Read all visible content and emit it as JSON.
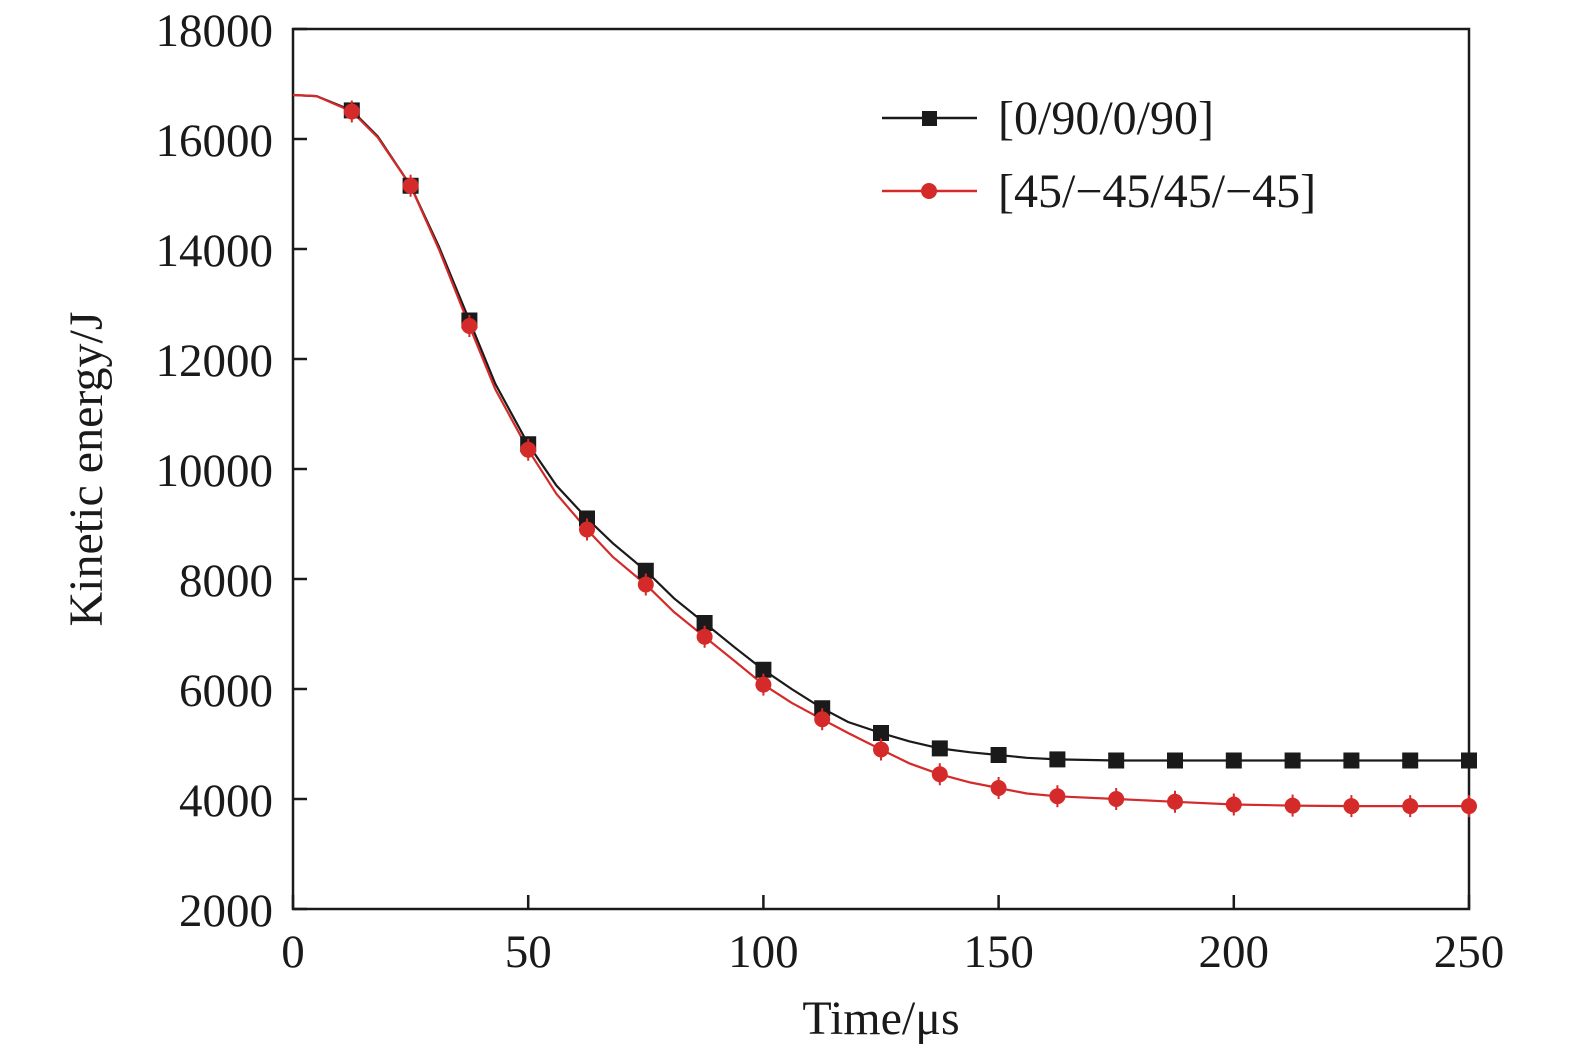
{
  "chart_data": {
    "type": "line",
    "title": "",
    "xlabel": "Time/μs",
    "ylabel": "Kinetic energy/J",
    "xlim": [
      0,
      250
    ],
    "ylim": [
      2000,
      18000
    ],
    "xticks": [
      0,
      50,
      100,
      150,
      200,
      250
    ],
    "yticks": [
      2000,
      4000,
      6000,
      8000,
      10000,
      12000,
      14000,
      16000,
      18000
    ],
    "grid": false,
    "legend_position": "top-right",
    "series": [
      {
        "name": "[0/90/0/90]",
        "color": "#1a1a1a",
        "marker": "square",
        "points": [
          [
            0,
            16800
          ],
          [
            5,
            16780
          ],
          [
            12.5,
            16520
          ],
          [
            18,
            16050
          ],
          [
            25,
            15150
          ],
          [
            31,
            14050
          ],
          [
            37.5,
            12700
          ],
          [
            43,
            11550
          ],
          [
            50,
            10450
          ],
          [
            56,
            9700
          ],
          [
            62.5,
            9100
          ],
          [
            68,
            8650
          ],
          [
            75,
            8150
          ],
          [
            81,
            7650
          ],
          [
            87.5,
            7200
          ],
          [
            94,
            6750
          ],
          [
            100,
            6350
          ],
          [
            106,
            6000
          ],
          [
            112.5,
            5650
          ],
          [
            118,
            5400
          ],
          [
            125,
            5200
          ],
          [
            131,
            5050
          ],
          [
            137.5,
            4920
          ],
          [
            144,
            4850
          ],
          [
            150,
            4800
          ],
          [
            156,
            4750
          ],
          [
            162.5,
            4720
          ],
          [
            175,
            4700
          ],
          [
            187.5,
            4700
          ],
          [
            200,
            4700
          ],
          [
            212.5,
            4700
          ],
          [
            225,
            4700
          ],
          [
            237.5,
            4700
          ],
          [
            250,
            4700
          ]
        ]
      },
      {
        "name": "[45/−45/45/−45]",
        "color": "#d42a2a",
        "marker": "circle",
        "points": [
          [
            0,
            16800
          ],
          [
            5,
            16780
          ],
          [
            12.5,
            16500
          ],
          [
            18,
            16030
          ],
          [
            25,
            15150
          ],
          [
            31,
            14000
          ],
          [
            37.5,
            12600
          ],
          [
            43,
            11450
          ],
          [
            50,
            10350
          ],
          [
            56,
            9550
          ],
          [
            62.5,
            8900
          ],
          [
            68,
            8400
          ],
          [
            75,
            7900
          ],
          [
            81,
            7400
          ],
          [
            87.5,
            6950
          ],
          [
            94,
            6500
          ],
          [
            100,
            6080
          ],
          [
            106,
            5750
          ],
          [
            112.5,
            5450
          ],
          [
            118,
            5200
          ],
          [
            125,
            4900
          ],
          [
            131,
            4650
          ],
          [
            137.5,
            4450
          ],
          [
            144,
            4300
          ],
          [
            150,
            4200
          ],
          [
            156,
            4100
          ],
          [
            162.5,
            4050
          ],
          [
            175,
            4000
          ],
          [
            187.5,
            3950
          ],
          [
            200,
            3900
          ],
          [
            212.5,
            3880
          ],
          [
            225,
            3870
          ],
          [
            237.5,
            3870
          ],
          [
            250,
            3870
          ]
        ],
        "marker_x": [
          12.5,
          25,
          37.5,
          50,
          62.5,
          75,
          87.5,
          100,
          112.5,
          125,
          137.5,
          150,
          162.5,
          175,
          187.5,
          200,
          212.5,
          225,
          237.5,
          250
        ]
      }
    ]
  }
}
